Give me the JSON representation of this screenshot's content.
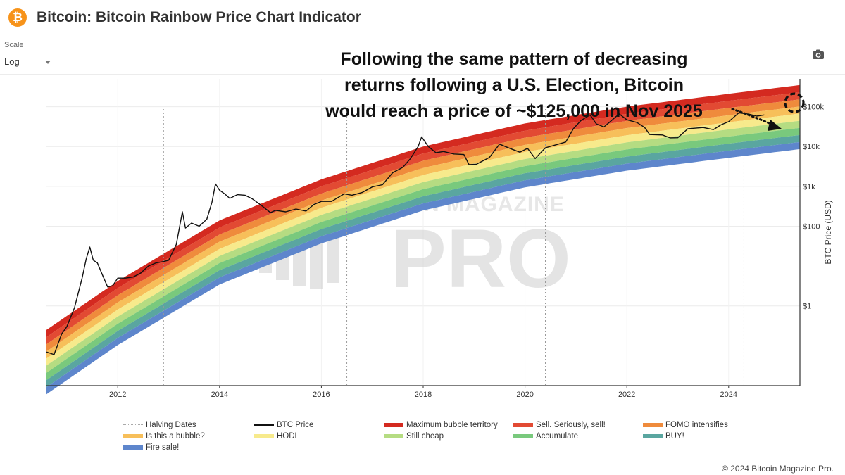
{
  "header": {
    "logo_glyph": "₿",
    "title": "Bitcoin: Bitcoin Rainbow Price Chart Indicator"
  },
  "toolbar": {
    "scale_label": "Scale",
    "scale_value": "Log",
    "camera_icon": "camera-icon"
  },
  "annotation": {
    "lines": [
      "Following the same pattern of decreasing",
      "returns following a U.S. Election, Bitcoin",
      "would reach a price of ~$125,000 in Nov 2025"
    ]
  },
  "watermark": {
    "top": "BITCOIN MAGAZINE",
    "main": "PRO"
  },
  "chart_data": {
    "type": "line",
    "ylabel": "BTC Price (USD)",
    "yscale": "log",
    "xlim": [
      2010.6,
      2025.4
    ],
    "ylim": [
      0.01,
      500000
    ],
    "x_ticks": [
      "2012",
      "2014",
      "2016",
      "2018",
      "2020",
      "2022",
      "2024"
    ],
    "y_ticks": [
      {
        "value": 1,
        "label": "$1"
      },
      {
        "value": 100,
        "label": "$100"
      },
      {
        "value": 1000,
        "label": "$1k"
      },
      {
        "value": 10000,
        "label": "$10k"
      },
      {
        "value": 100000,
        "label": "$100k"
      }
    ],
    "halving_dates": [
      2012.9,
      2016.5,
      2020.4,
      2024.3
    ],
    "rainbow_bands": [
      {
        "name": "Maximum bubble territory",
        "color": "#d42a20",
        "upper": [
          [
            2010.6,
            0.25
          ],
          [
            2012,
            4.2
          ],
          [
            2014,
            140
          ],
          [
            2016,
            1500
          ],
          [
            2018,
            10000
          ],
          [
            2020,
            38000
          ],
          [
            2022,
            100000
          ],
          [
            2024,
            210000
          ],
          [
            2025.4,
            350000
          ]
        ]
      },
      {
        "name": "Sell. Seriously, sell!",
        "color": "#e24a33",
        "upper": [
          [
            2010.6,
            0.165
          ],
          [
            2012,
            2.8
          ],
          [
            2014,
            93
          ],
          [
            2016,
            1000
          ],
          [
            2018,
            6700
          ],
          [
            2020,
            25000
          ],
          [
            2022,
            66000
          ],
          [
            2024,
            140000
          ],
          [
            2025.4,
            230000
          ]
        ]
      },
      {
        "name": "FOMO intensifies",
        "color": "#ef8b3c",
        "upper": [
          [
            2010.6,
            0.109
          ],
          [
            2012,
            1.85
          ],
          [
            2014,
            62
          ],
          [
            2016,
            660
          ],
          [
            2018,
            4400
          ],
          [
            2020,
            16700
          ],
          [
            2022,
            44000
          ],
          [
            2024,
            93000
          ],
          [
            2025.4,
            152000
          ]
        ]
      },
      {
        "name": "Is this a bubble?",
        "color": "#f7bf5a",
        "upper": [
          [
            2010.6,
            0.072
          ],
          [
            2012,
            1.22
          ],
          [
            2014,
            41
          ],
          [
            2016,
            440
          ],
          [
            2018,
            2900
          ],
          [
            2020,
            11000
          ],
          [
            2022,
            29000
          ],
          [
            2024,
            61000
          ],
          [
            2025.4,
            101000
          ]
        ]
      },
      {
        "name": "HODL",
        "color": "#f7ea8c",
        "upper": [
          [
            2010.6,
            0.048
          ],
          [
            2012,
            0.81
          ],
          [
            2014,
            27
          ],
          [
            2016,
            290
          ],
          [
            2018,
            1930
          ],
          [
            2020,
            7300
          ],
          [
            2022,
            19200
          ],
          [
            2024,
            40500
          ],
          [
            2025.4,
            67000
          ]
        ]
      },
      {
        "name": "Still cheap",
        "color": "#b5dc82",
        "upper": [
          [
            2010.6,
            0.032
          ],
          [
            2012,
            0.54
          ],
          [
            2014,
            18
          ],
          [
            2016,
            193
          ],
          [
            2018,
            1280
          ],
          [
            2020,
            4850
          ],
          [
            2022,
            12700
          ],
          [
            2024,
            26900
          ],
          [
            2025.4,
            44300
          ]
        ]
      },
      {
        "name": "Accumulate",
        "color": "#79c97d",
        "upper": [
          [
            2010.6,
            0.021
          ],
          [
            2012,
            0.357
          ],
          [
            2014,
            11.9
          ],
          [
            2016,
            128
          ],
          [
            2018,
            850
          ],
          [
            2020,
            3220
          ],
          [
            2022,
            8450
          ],
          [
            2024,
            17800
          ],
          [
            2025.4,
            29400
          ]
        ]
      },
      {
        "name": "BUY!",
        "color": "#5aa6a0",
        "upper": [
          [
            2010.6,
            0.0138
          ],
          [
            2012,
            0.236
          ],
          [
            2014,
            7.9
          ],
          [
            2016,
            85
          ],
          [
            2018,
            565
          ],
          [
            2020,
            2140
          ],
          [
            2022,
            5600
          ],
          [
            2024,
            11800
          ],
          [
            2025.4,
            19500
          ]
        ]
      },
      {
        "name": "Fire sale!",
        "color": "#5e86cc",
        "upper": [
          [
            2010.6,
            0.0092
          ],
          [
            2012,
            0.157
          ],
          [
            2014,
            5.2
          ],
          [
            2016,
            56
          ],
          [
            2018,
            375
          ],
          [
            2020,
            1420
          ],
          [
            2022,
            3720
          ],
          [
            2024,
            7850
          ],
          [
            2025.4,
            12950
          ]
        ],
        "lower": [
          [
            2010.6,
            0.0061
          ],
          [
            2012,
            0.104
          ],
          [
            2014,
            3.45
          ],
          [
            2016,
            37
          ],
          [
            2018,
            249
          ],
          [
            2020,
            945
          ],
          [
            2022,
            2480
          ],
          [
            2024,
            5200
          ],
          [
            2025.4,
            8600
          ]
        ]
      }
    ],
    "series": [
      {
        "name": "BTC Price",
        "color": "#111111",
        "points": [
          [
            2010.6,
            0.07
          ],
          [
            2010.75,
            0.06
          ],
          [
            2010.9,
            0.2
          ],
          [
            2011.0,
            0.3
          ],
          [
            2011.15,
            0.9
          ],
          [
            2011.3,
            5
          ],
          [
            2011.38,
            15
          ],
          [
            2011.45,
            30
          ],
          [
            2011.52,
            14
          ],
          [
            2011.6,
            12
          ],
          [
            2011.7,
            6
          ],
          [
            2011.8,
            3
          ],
          [
            2011.9,
            3.2
          ],
          [
            2012.0,
            5
          ],
          [
            2012.15,
            5
          ],
          [
            2012.3,
            5.3
          ],
          [
            2012.45,
            6.7
          ],
          [
            2012.6,
            10
          ],
          [
            2012.75,
            12
          ],
          [
            2012.9,
            13
          ],
          [
            2013.0,
            14
          ],
          [
            2013.15,
            35
          ],
          [
            2013.27,
            230
          ],
          [
            2013.33,
            90
          ],
          [
            2013.45,
            120
          ],
          [
            2013.6,
            100
          ],
          [
            2013.75,
            150
          ],
          [
            2013.85,
            400
          ],
          [
            2013.92,
            1150
          ],
          [
            2014.0,
            800
          ],
          [
            2014.1,
            650
          ],
          [
            2014.2,
            500
          ],
          [
            2014.35,
            620
          ],
          [
            2014.5,
            600
          ],
          [
            2014.65,
            480
          ],
          [
            2014.8,
            350
          ],
          [
            2015.0,
            220
          ],
          [
            2015.1,
            250
          ],
          [
            2015.3,
            230
          ],
          [
            2015.5,
            270
          ],
          [
            2015.7,
            240
          ],
          [
            2015.85,
            350
          ],
          [
            2016.0,
            420
          ],
          [
            2016.2,
            420
          ],
          [
            2016.45,
            650
          ],
          [
            2016.6,
            600
          ],
          [
            2016.8,
            700
          ],
          [
            2017.0,
            970
          ],
          [
            2017.2,
            1100
          ],
          [
            2017.4,
            2200
          ],
          [
            2017.6,
            3000
          ],
          [
            2017.75,
            5000
          ],
          [
            2017.9,
            10000
          ],
          [
            2017.97,
            17500
          ],
          [
            2018.1,
            10000
          ],
          [
            2018.25,
            7000
          ],
          [
            2018.4,
            7500
          ],
          [
            2018.6,
            6500
          ],
          [
            2018.8,
            6300
          ],
          [
            2018.9,
            3500
          ],
          [
            2019.05,
            3600
          ],
          [
            2019.3,
            5300
          ],
          [
            2019.5,
            11500
          ],
          [
            2019.7,
            9000
          ],
          [
            2019.9,
            7200
          ],
          [
            2020.05,
            9000
          ],
          [
            2020.2,
            5000
          ],
          [
            2020.4,
            9300
          ],
          [
            2020.6,
            11000
          ],
          [
            2020.8,
            13000
          ],
          [
            2020.95,
            28000
          ],
          [
            2021.1,
            45000
          ],
          [
            2021.28,
            62000
          ],
          [
            2021.4,
            37000
          ],
          [
            2021.55,
            31000
          ],
          [
            2021.7,
            45000
          ],
          [
            2021.85,
            66000
          ],
          [
            2022.0,
            47000
          ],
          [
            2022.2,
            40000
          ],
          [
            2022.35,
            30000
          ],
          [
            2022.45,
            20000
          ],
          [
            2022.7,
            19500
          ],
          [
            2022.85,
            16500
          ],
          [
            2023.0,
            16600
          ],
          [
            2023.2,
            28000
          ],
          [
            2023.5,
            30000
          ],
          [
            2023.7,
            26500
          ],
          [
            2023.85,
            35000
          ],
          [
            2024.0,
            42000
          ],
          [
            2024.2,
            70000
          ],
          [
            2024.4,
            65000
          ],
          [
            2024.55,
            58000
          ],
          [
            2024.7,
            62000
          ]
        ]
      }
    ],
    "projection_marker": {
      "x": 2025.85,
      "y": 125000
    },
    "legend_position": "bottom"
  },
  "legend": {
    "items": [
      {
        "label": "Halving Dates",
        "kind": "dash",
        "color": "#aaaaaa"
      },
      {
        "label": "BTC Price",
        "kind": "line",
        "color": "#111111"
      },
      {
        "label": "Maximum bubble territory",
        "kind": "swatch",
        "color": "#d42a20"
      },
      {
        "label": "Sell. Seriously, sell!",
        "kind": "swatch",
        "color": "#e24a33"
      },
      {
        "label": "FOMO intensifies",
        "kind": "swatch",
        "color": "#ef8b3c"
      },
      {
        "label": "Is this a bubble?",
        "kind": "swatch",
        "color": "#f7bf5a"
      },
      {
        "label": "HODL",
        "kind": "swatch",
        "color": "#f7ea8c"
      },
      {
        "label": "Still cheap",
        "kind": "swatch",
        "color": "#b5dc82"
      },
      {
        "label": "Accumulate",
        "kind": "swatch",
        "color": "#79c97d"
      },
      {
        "label": "BUY!",
        "kind": "swatch",
        "color": "#5aa6a0"
      },
      {
        "label": "Fire sale!",
        "kind": "swatch",
        "color": "#5e86cc"
      }
    ]
  },
  "footer": {
    "copyright": "© 2024 Bitcoin Magazine Pro."
  }
}
